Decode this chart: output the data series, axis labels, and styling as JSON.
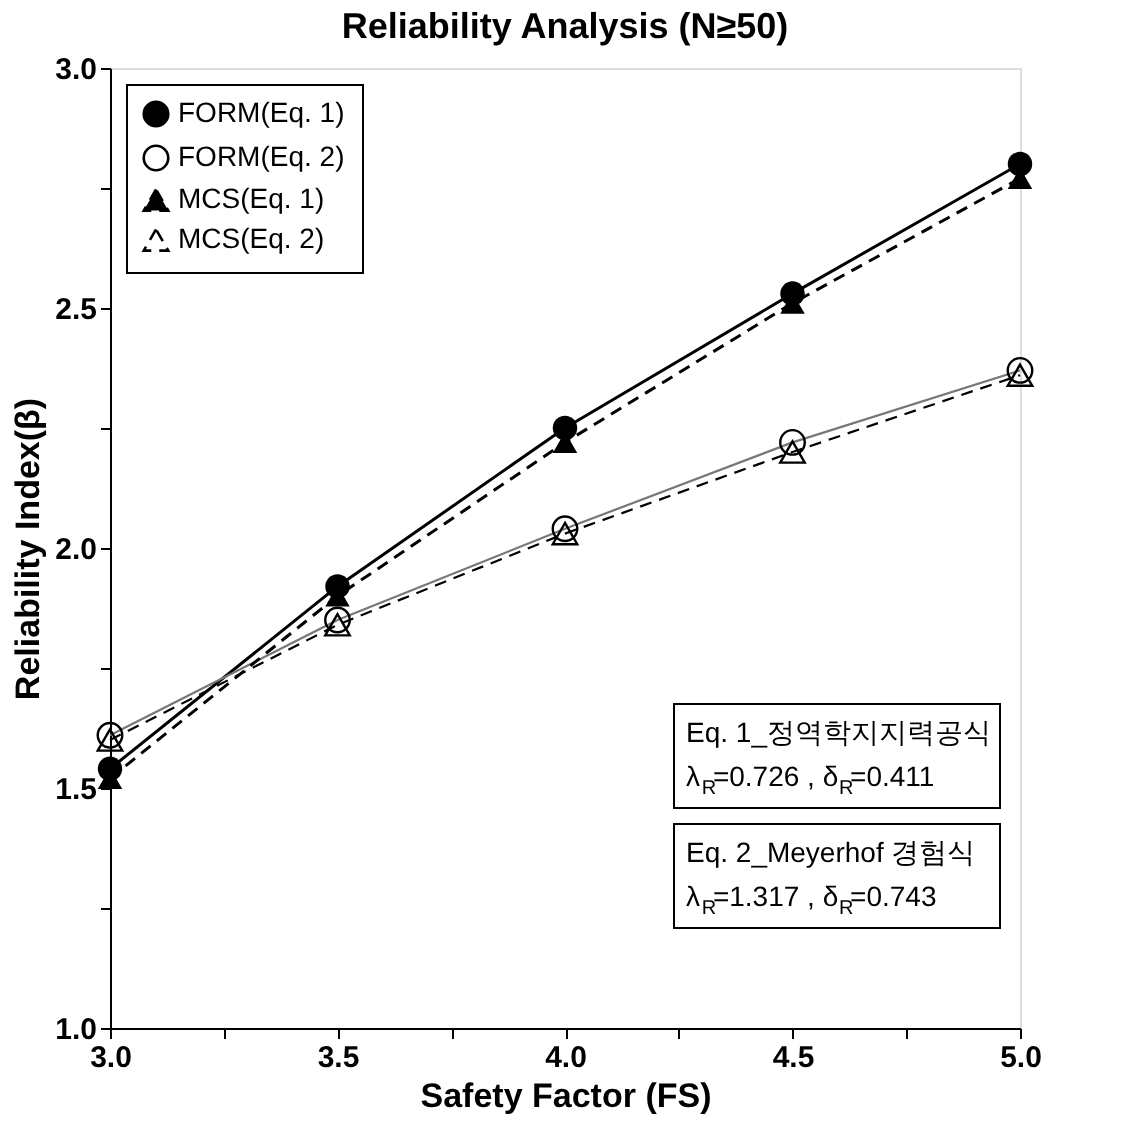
{
  "chart_data": {
    "type": "line",
    "title": "Reliability Analysis (N≥50)",
    "xlabel": "Safety Factor (FS)",
    "ylabel": "Reliability Index(β)",
    "x": [
      3.0,
      3.5,
      4.0,
      4.5,
      5.0
    ],
    "series": [
      {
        "name": "FORM(Eq. 1)",
        "color": "#000000",
        "marker": "circle",
        "line_style": "solid",
        "values": [
          1.54,
          1.92,
          2.25,
          2.53,
          2.8
        ]
      },
      {
        "name": "FORM(Eq. 2)",
        "color": "#777777",
        "marker": "circle",
        "line_style": "solid",
        "values": [
          1.61,
          1.85,
          2.04,
          2.22,
          2.37
        ]
      },
      {
        "name": "MCS(Eq. 1)",
        "color": "#000000",
        "marker": "triangle",
        "line_style": "dashed",
        "values": [
          1.52,
          1.9,
          2.22,
          2.51,
          2.77
        ]
      },
      {
        "name": "MCS(Eq. 2)",
        "color": "#000000",
        "marker": "triangle",
        "line_style": "dashed",
        "values": [
          1.6,
          1.84,
          2.03,
          2.2,
          2.36
        ]
      }
    ],
    "xlim": [
      3.0,
      5.0
    ],
    "ylim": [
      1.0,
      3.0
    ],
    "xticks": [
      {
        "value": 3,
        "label": "3.0"
      },
      {
        "value": 3.25,
        "label": null
      },
      3.5,
      {
        "value": 3.75,
        "label": null
      },
      {
        "value": 4,
        "label": "4.0"
      },
      {
        "value": 4.25,
        "label": null
      },
      4.5,
      {
        "value": 4.75,
        "label": null
      },
      {
        "value": 5,
        "label": "5.0"
      }
    ],
    "yticks": [
      {
        "value": 1,
        "label": "1.0"
      },
      {
        "value": 1.25,
        "label": null
      },
      1.5,
      {
        "value": 1.75,
        "label": null
      },
      {
        "value": 2,
        "label": "2.0"
      },
      {
        "value": 2.25,
        "label": null
      },
      2.5,
      {
        "value": 2.75,
        "label": null
      },
      {
        "value": 3,
        "label": "3.0"
      }
    ],
    "grid": false,
    "legend": "top left",
    "annotations": [
      "Eq. 1_정역학지지력공식\nλ$_{R}$=0.726 , δ$_{R}$=0.411",
      "Eq. 2_Meyerhof 경험식\nλ$_{R}$=1.317 , δ$_{R}$=0.743"
    ]
  }
}
